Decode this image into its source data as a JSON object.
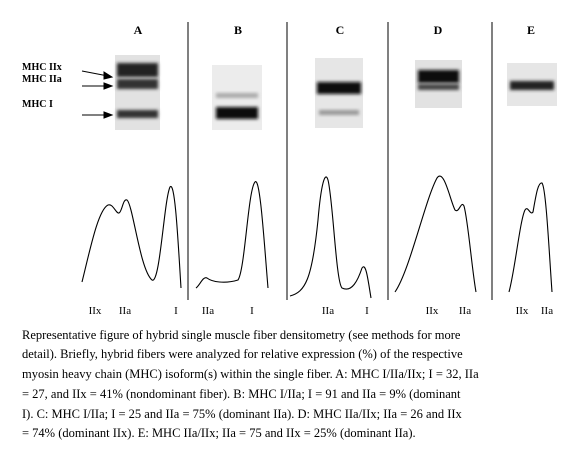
{
  "panels": [
    {
      "label": "A",
      "peak_labels": [
        "IIx",
        "IIa",
        "I"
      ]
    },
    {
      "label": "B",
      "peak_labels": [
        "IIa",
        "I"
      ]
    },
    {
      "label": "C",
      "peak_labels": [
        "IIa",
        "I"
      ]
    },
    {
      "label": "D",
      "peak_labels": [
        "IIx",
        "IIa"
      ]
    },
    {
      "label": "E",
      "peak_labels": [
        "IIx",
        "IIa"
      ]
    }
  ],
  "band_labels": [
    "MHC IIx",
    "MHC IIa",
    "MHC I"
  ],
  "caption": [
    "Representative figure of hybrid single muscle fiber densitometry (see methods for more",
    "detail).  Briefly, hybrid fibers were analyzed for relative expression (%) of the respective",
    "myosin heavy chain (MHC) isoform(s) within the single fiber. A: MHC I/IIa/IIx; I = 32, IIa",
    "= 27, and IIx = 41% (nondominant fiber). B: MHC I/IIa; I = 91 and IIa = 9% (dominant",
    "I). C: MHC I/IIa; I = 25 and IIa = 75% (dominant IIa). D: MHC IIa/IIx; IIa = 26 and IIx",
    "= 74% (dominant IIx). E: MHC IIa/IIx; IIa = 75 and IIx = 25% (dominant IIa)."
  ]
}
